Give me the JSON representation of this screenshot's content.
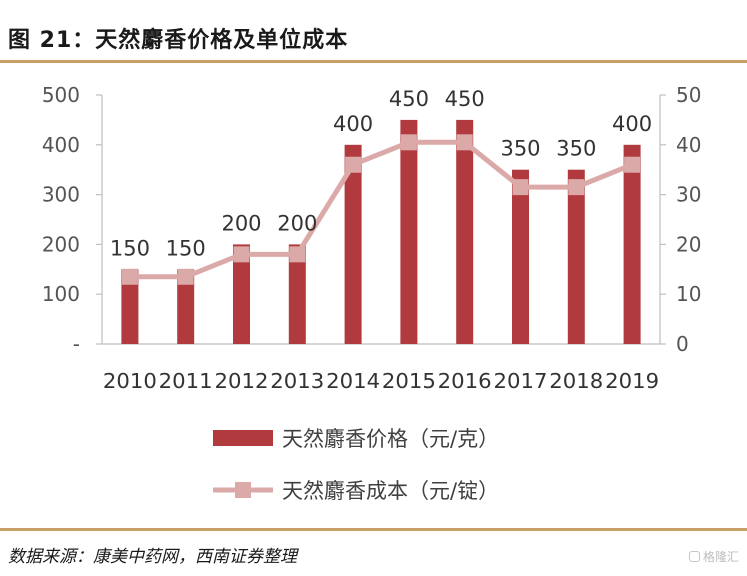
{
  "title": "图 21：天然麝香价格及单位成本",
  "source": "数据来源：康美中药网，西南证券整理",
  "watermark": "格隆汇",
  "colors": {
    "bar": "#b03a3e",
    "line": "#dca9a9",
    "rule": "#c9a063"
  },
  "chart_data": {
    "type": "bar",
    "categories": [
      "2010",
      "2011",
      "2012",
      "2013",
      "2014",
      "2015",
      "2016",
      "2017",
      "2018",
      "2019"
    ],
    "series": [
      {
        "name": "天然麝香价格（元/克）",
        "type": "bar",
        "axis": "left",
        "values": [
          150,
          150,
          200,
          200,
          400,
          450,
          450,
          350,
          350,
          400
        ]
      },
      {
        "name": "天然麝香成本（元/锭）",
        "type": "line",
        "axis": "right",
        "values": [
          13.5,
          13.5,
          18,
          18,
          36,
          40.5,
          40.5,
          31.5,
          31.5,
          36
        ]
      }
    ],
    "y_left": {
      "min": 0,
      "max": 500,
      "ticks": [
        "-",
        "100",
        "200",
        "300",
        "400",
        "500"
      ]
    },
    "y_right": {
      "min": 0,
      "max": 50,
      "ticks": [
        "0",
        "10",
        "20",
        "30",
        "40",
        "50"
      ]
    },
    "data_labels": [
      "150",
      "150",
      "200",
      "200",
      "400",
      "450",
      "450",
      "350",
      "350",
      "400"
    ],
    "legend": "bottom"
  }
}
